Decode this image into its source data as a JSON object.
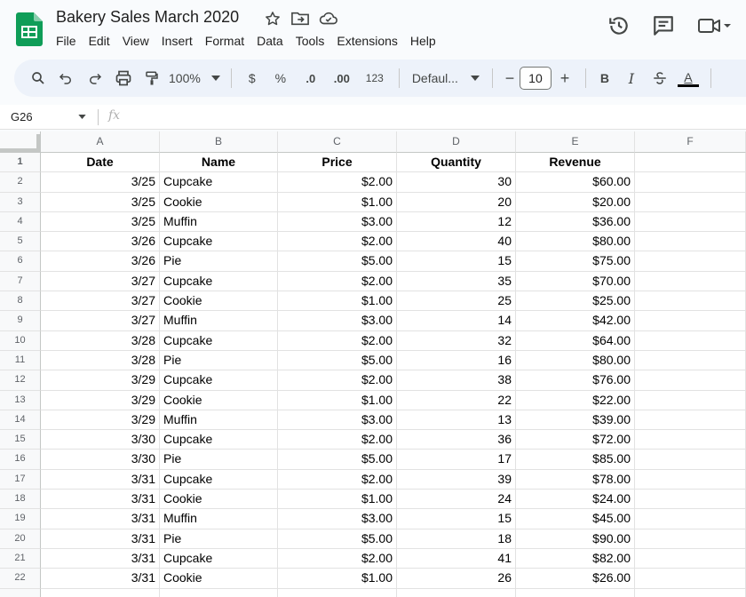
{
  "doc": {
    "title": "Bakery Sales March 2020"
  },
  "menu": [
    "File",
    "Edit",
    "View",
    "Insert",
    "Format",
    "Data",
    "Tools",
    "Extensions",
    "Help"
  ],
  "toolbar": {
    "zoom": "100%",
    "currency": "$",
    "percent": "%",
    "decrease_decimal": ".0",
    "increase_decimal": ".00",
    "number_format": "123",
    "font": "Defaul...",
    "font_size": "10",
    "minus": "−",
    "plus": "+",
    "bold": "B",
    "italic": "I",
    "text_color": "A"
  },
  "formula": {
    "cell_ref": "G26",
    "fx": "fx"
  },
  "columns": [
    "A",
    "B",
    "C",
    "D",
    "E",
    "F"
  ],
  "headers": [
    "Date",
    "Name",
    "Price",
    "Quantity",
    "Revenue"
  ],
  "rows": [
    [
      "3/25",
      "Cupcake",
      "$2.00",
      "30",
      "$60.00"
    ],
    [
      "3/25",
      "Cookie",
      "$1.00",
      "20",
      "$20.00"
    ],
    [
      "3/25",
      "Muffin",
      "$3.00",
      "12",
      "$36.00"
    ],
    [
      "3/26",
      "Cupcake",
      "$2.00",
      "40",
      "$80.00"
    ],
    [
      "3/26",
      "Pie",
      "$5.00",
      "15",
      "$75.00"
    ],
    [
      "3/27",
      "Cupcake",
      "$2.00",
      "35",
      "$70.00"
    ],
    [
      "3/27",
      "Cookie",
      "$1.00",
      "25",
      "$25.00"
    ],
    [
      "3/27",
      "Muffin",
      "$3.00",
      "14",
      "$42.00"
    ],
    [
      "3/28",
      "Cupcake",
      "$2.00",
      "32",
      "$64.00"
    ],
    [
      "3/28",
      "Pie",
      "$5.00",
      "16",
      "$80.00"
    ],
    [
      "3/29",
      "Cupcake",
      "$2.00",
      "38",
      "$76.00"
    ],
    [
      "3/29",
      "Cookie",
      "$1.00",
      "22",
      "$22.00"
    ],
    [
      "3/29",
      "Muffin",
      "$3.00",
      "13",
      "$39.00"
    ],
    [
      "3/30",
      "Cupcake",
      "$2.00",
      "36",
      "$72.00"
    ],
    [
      "3/30",
      "Pie",
      "$5.00",
      "17",
      "$85.00"
    ],
    [
      "3/31",
      "Cupcake",
      "$2.00",
      "39",
      "$78.00"
    ],
    [
      "3/31",
      "Cookie",
      "$1.00",
      "24",
      "$24.00"
    ],
    [
      "3/31",
      "Muffin",
      "$3.00",
      "15",
      "$45.00"
    ],
    [
      "3/31",
      "Pie",
      "$5.00",
      "18",
      "$90.00"
    ],
    [
      "3/31",
      "Cupcake",
      "$2.00",
      "41",
      "$82.00"
    ],
    [
      "3/31",
      "Cookie",
      "$1.00",
      "26",
      "$26.00"
    ]
  ],
  "icons": {
    "logo": "sheets-logo-icon",
    "star": "star-icon",
    "move": "move-to-folder-icon",
    "cloud": "cloud-saved-icon",
    "history": "version-history-icon",
    "comments": "comments-icon",
    "meet": "video-call-icon"
  },
  "colors": {
    "sheets_green": "#0f9d58",
    "toolbar_bg": "#edf2fa"
  }
}
